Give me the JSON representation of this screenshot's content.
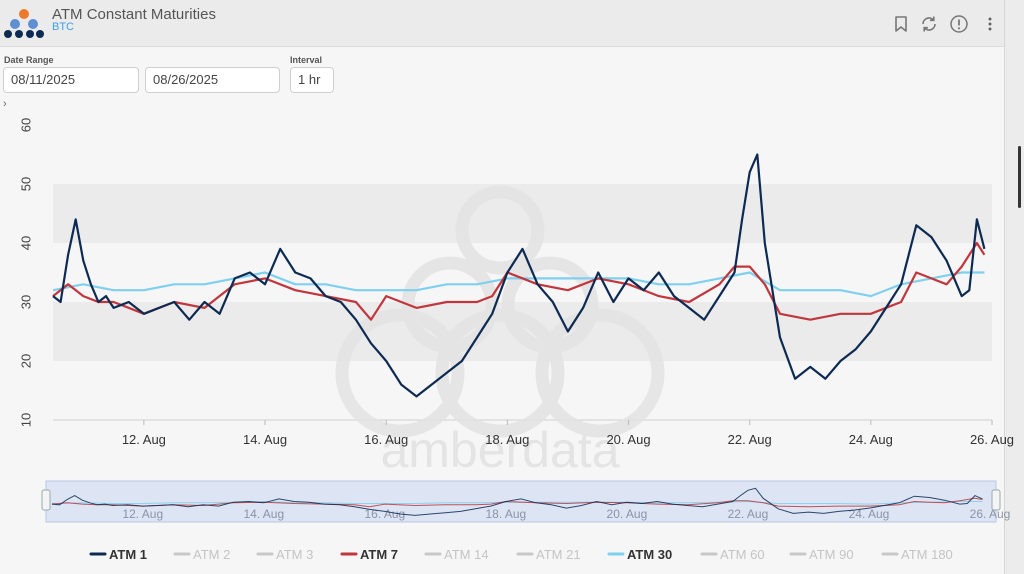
{
  "header": {
    "title": "ATM Constant Maturities",
    "subtitle": "BTC"
  },
  "controls": {
    "date_range_label": "Date Range",
    "start_date": "08/11/2025",
    "end_date": "08/26/2025",
    "interval_label": "Interval",
    "interval": "1 hr"
  },
  "icons": {
    "bookmark": "bookmark-icon",
    "refresh": "refresh-icon",
    "info": "info-icon",
    "menu": "more-vertical-icon",
    "expand": "chevron-right-icon"
  },
  "watermark": "amberdata",
  "chart_data": {
    "type": "line",
    "title": "",
    "xlabel": "",
    "ylabel": "",
    "ylim": [
      10,
      60
    ],
    "yticks": [
      10,
      20,
      30,
      40,
      50,
      60
    ],
    "xlim": [
      "2025-08-11T00:00",
      "2025-08-26T12:00"
    ],
    "xticks": [
      "12. Aug",
      "14. Aug",
      "16. Aug",
      "18. Aug",
      "20. Aug",
      "22. Aug",
      "24. Aug",
      "26. Aug"
    ],
    "grid": "horizontal alternating bands",
    "legend_position": "bottom",
    "navigator": true,
    "series": [
      {
        "name": "ATM 1",
        "color": "#0d2a52",
        "visible": true,
        "x": [
          "2025-08-11T00:00",
          "2025-08-11T03:00",
          "2025-08-11T06:00",
          "2025-08-11T09:00",
          "2025-08-11T12:00",
          "2025-08-11T15:00",
          "2025-08-11T18:00",
          "2025-08-11T21:00",
          "2025-08-12T00:00",
          "2025-08-12T06:00",
          "2025-08-12T12:00",
          "2025-08-12T18:00",
          "2025-08-13T00:00",
          "2025-08-13T06:00",
          "2025-08-13T12:00",
          "2025-08-13T18:00",
          "2025-08-14T00:00",
          "2025-08-14T06:00",
          "2025-08-14T12:00",
          "2025-08-14T18:00",
          "2025-08-15T00:00",
          "2025-08-15T06:00",
          "2025-08-15T12:00",
          "2025-08-15T18:00",
          "2025-08-16T00:00",
          "2025-08-16T06:00",
          "2025-08-16T12:00",
          "2025-08-16T18:00",
          "2025-08-17T00:00",
          "2025-08-17T06:00",
          "2025-08-17T12:00",
          "2025-08-17T18:00",
          "2025-08-18T00:00",
          "2025-08-18T03:00",
          "2025-08-18T06:00",
          "2025-08-18T12:00",
          "2025-08-18T18:00",
          "2025-08-19T00:00",
          "2025-08-19T06:00",
          "2025-08-19T12:00",
          "2025-08-19T18:00",
          "2025-08-20T00:00",
          "2025-08-20T06:00",
          "2025-08-20T12:00",
          "2025-08-20T18:00",
          "2025-08-21T00:00",
          "2025-08-21T06:00",
          "2025-08-21T12:00",
          "2025-08-21T18:00",
          "2025-08-22T00:00",
          "2025-08-22T06:00",
          "2025-08-22T09:00",
          "2025-08-22T12:00",
          "2025-08-22T15:00",
          "2025-08-22T18:00",
          "2025-08-23T00:00",
          "2025-08-23T06:00",
          "2025-08-23T12:00",
          "2025-08-23T18:00",
          "2025-08-24T00:00",
          "2025-08-24T06:00",
          "2025-08-24T12:00",
          "2025-08-24T18:00",
          "2025-08-25T00:00",
          "2025-08-25T03:00",
          "2025-08-25T06:00",
          "2025-08-25T12:00",
          "2025-08-25T18:00",
          "2025-08-26T00:00",
          "2025-08-26T03:00",
          "2025-08-26T06:00",
          "2025-08-26T09:00"
        ],
        "y": [
          31,
          30,
          38,
          44,
          37,
          33,
          30,
          31,
          29,
          30,
          28,
          29,
          30,
          27,
          30,
          28,
          34,
          35,
          33,
          39,
          35,
          34,
          31,
          30,
          27,
          23,
          20,
          16,
          14,
          16,
          18,
          20,
          24,
          26,
          28,
          35,
          39,
          33,
          30,
          25,
          29,
          35,
          30,
          34,
          32,
          35,
          31,
          29,
          27,
          31,
          35,
          44,
          52,
          55,
          40,
          24,
          17,
          19,
          17,
          20,
          22,
          25,
          29,
          33,
          38,
          43,
          41,
          37,
          31,
          32,
          44,
          39
        ]
      },
      {
        "name": "ATM 7",
        "color": "#c0363c",
        "visible": true,
        "x": [
          "2025-08-11T00:00",
          "2025-08-11T06:00",
          "2025-08-11T12:00",
          "2025-08-11T18:00",
          "2025-08-12T00:00",
          "2025-08-12T12:00",
          "2025-08-13T00:00",
          "2025-08-13T12:00",
          "2025-08-14T00:00",
          "2025-08-14T12:00",
          "2025-08-15T00:00",
          "2025-08-15T12:00",
          "2025-08-16T00:00",
          "2025-08-16T06:00",
          "2025-08-16T12:00",
          "2025-08-17T00:00",
          "2025-08-17T12:00",
          "2025-08-18T00:00",
          "2025-08-18T06:00",
          "2025-08-18T12:00",
          "2025-08-19T00:00",
          "2025-08-19T12:00",
          "2025-08-20T00:00",
          "2025-08-20T12:00",
          "2025-08-21T00:00",
          "2025-08-21T12:00",
          "2025-08-22T00:00",
          "2025-08-22T06:00",
          "2025-08-22T12:00",
          "2025-08-22T18:00",
          "2025-08-23T00:00",
          "2025-08-23T12:00",
          "2025-08-24T00:00",
          "2025-08-24T12:00",
          "2025-08-25T00:00",
          "2025-08-25T06:00",
          "2025-08-25T12:00",
          "2025-08-25T18:00",
          "2025-08-26T00:00",
          "2025-08-26T06:00",
          "2025-08-26T09:00"
        ],
        "y": [
          31,
          33,
          31,
          30,
          30,
          28,
          30,
          29,
          33,
          34,
          32,
          31,
          30,
          27,
          31,
          29,
          30,
          30,
          31,
          35,
          33,
          32,
          34,
          33,
          31,
          30,
          33,
          36,
          36,
          33,
          28,
          27,
          28,
          28,
          30,
          35,
          34,
          33,
          36,
          40,
          38
        ]
      },
      {
        "name": "ATM 30",
        "color": "#7fd0ee",
        "visible": true,
        "x": [
          "2025-08-11T00:00",
          "2025-08-11T12:00",
          "2025-08-12T00:00",
          "2025-08-12T12:00",
          "2025-08-13T00:00",
          "2025-08-13T12:00",
          "2025-08-14T00:00",
          "2025-08-14T12:00",
          "2025-08-15T00:00",
          "2025-08-15T12:00",
          "2025-08-16T00:00",
          "2025-08-16T12:00",
          "2025-08-17T00:00",
          "2025-08-17T12:00",
          "2025-08-18T00:00",
          "2025-08-18T12:00",
          "2025-08-19T00:00",
          "2025-08-19T12:00",
          "2025-08-20T00:00",
          "2025-08-20T12:00",
          "2025-08-21T00:00",
          "2025-08-21T12:00",
          "2025-08-22T00:00",
          "2025-08-22T12:00",
          "2025-08-23T00:00",
          "2025-08-23T12:00",
          "2025-08-24T00:00",
          "2025-08-24T12:00",
          "2025-08-25T00:00",
          "2025-08-25T12:00",
          "2025-08-26T00:00",
          "2025-08-26T09:00"
        ],
        "y": [
          32,
          33,
          32,
          32,
          33,
          33,
          34,
          35,
          33,
          33,
          32,
          32,
          32,
          33,
          33,
          34,
          34,
          34,
          34,
          34,
          33,
          33,
          34,
          35,
          32,
          32,
          32,
          31,
          33,
          34,
          35,
          35
        ]
      },
      {
        "name": "ATM 2",
        "color": "#bdbdbd",
        "visible": false
      },
      {
        "name": "ATM 3",
        "color": "#bdbdbd",
        "visible": false
      },
      {
        "name": "ATM 14",
        "color": "#bdbdbd",
        "visible": false
      },
      {
        "name": "ATM 21",
        "color": "#bdbdbd",
        "visible": false
      },
      {
        "name": "ATM 60",
        "color": "#bdbdbd",
        "visible": false
      },
      {
        "name": "ATM 90",
        "color": "#bdbdbd",
        "visible": false
      },
      {
        "name": "ATM 180",
        "color": "#bdbdbd",
        "visible": false
      }
    ],
    "legend": [
      "ATM 1",
      "ATM 2",
      "ATM 3",
      "ATM 7",
      "ATM 14",
      "ATM 21",
      "ATM 30",
      "ATM 60",
      "ATM 90",
      "ATM 180"
    ]
  }
}
